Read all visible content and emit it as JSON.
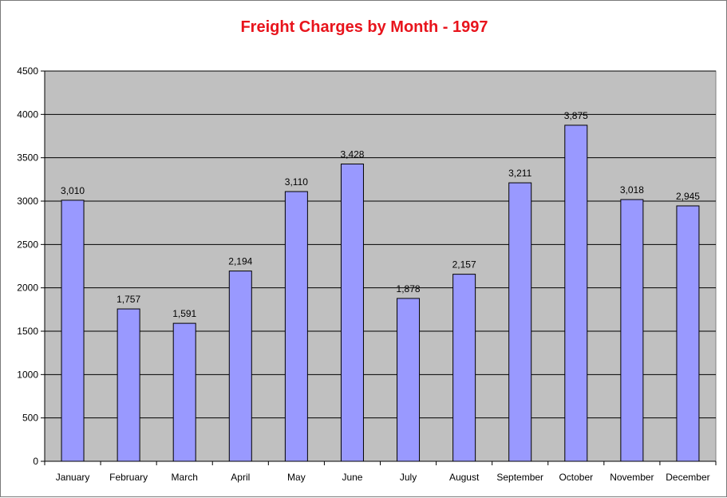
{
  "title": "Freight Charges by Month - 1997",
  "colors": {
    "title": "#e8141c",
    "bar_fill": "#9999ff",
    "bar_stroke": "#000000",
    "plot_background": "#c0c0c0",
    "gridline": "#000000"
  },
  "chart_data": {
    "type": "bar",
    "title": "Freight Charges by Month - 1997",
    "xlabel": "",
    "ylabel": "",
    "categories": [
      "January",
      "February",
      "March",
      "April",
      "May",
      "June",
      "July",
      "August",
      "September",
      "October",
      "November",
      "December"
    ],
    "values": [
      3010,
      1757,
      1591,
      2194,
      3110,
      3428,
      1878,
      2157,
      3211,
      3875,
      3018,
      2945
    ],
    "data_labels": [
      "3,010",
      "1,757",
      "1,591",
      "2,194",
      "3,110",
      "3,428",
      "1,878",
      "2,157",
      "3,211",
      "3,875",
      "3,018",
      "2,945"
    ],
    "ylim": [
      0,
      4500
    ],
    "yticks": [
      0,
      500,
      1000,
      1500,
      2000,
      2500,
      3000,
      3500,
      4000,
      4500
    ],
    "grid": true,
    "legend": "none"
  }
}
